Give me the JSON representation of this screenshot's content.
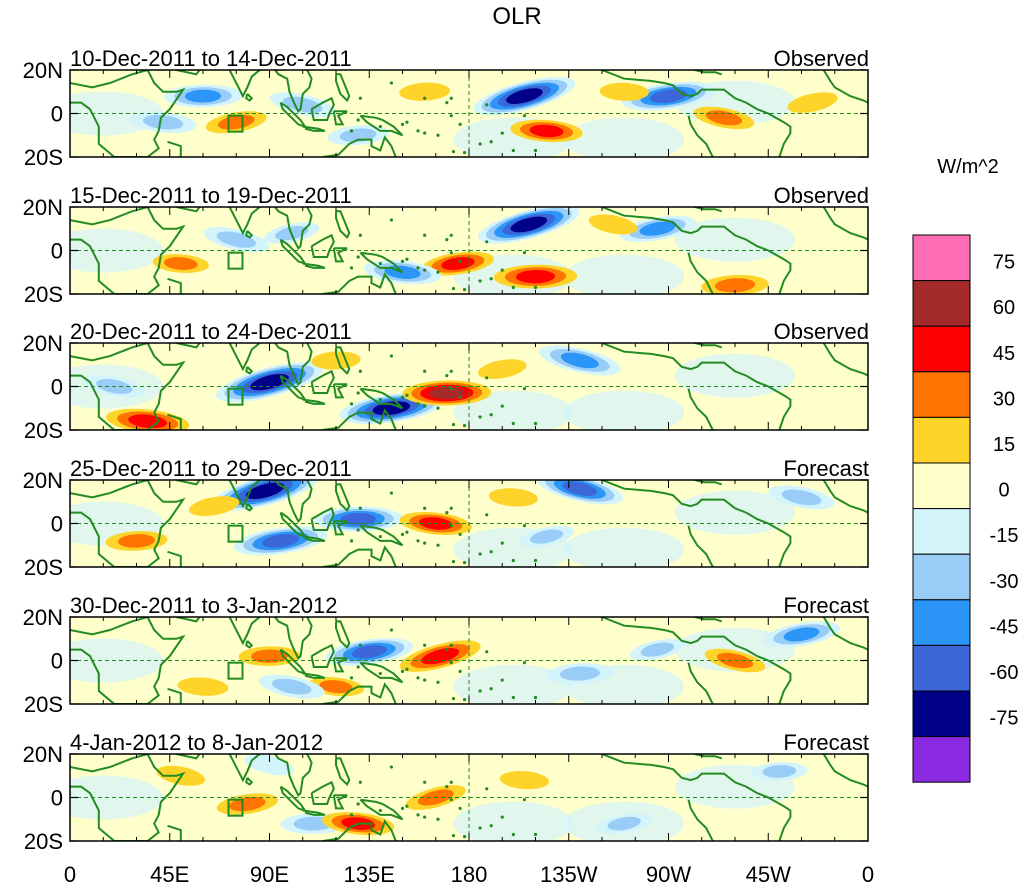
{
  "chart_data": {
    "type": "heatmap",
    "title": "OLR",
    "units_label": "W/m^2",
    "lat_tick_labels": [
      "20N",
      "0",
      "20S"
    ],
    "lon_tick_labels": [
      "0",
      "45E",
      "90E",
      "135E",
      "180",
      "135W",
      "90W",
      "45W",
      "0"
    ],
    "lon_ticks_deg": [
      0,
      45,
      90,
      135,
      180,
      225,
      270,
      315,
      360
    ],
    "lon_range": [
      0,
      360
    ],
    "lat_range": [
      -20,
      20
    ],
    "colorbar": {
      "levels": [
        75,
        60,
        45,
        30,
        15,
        0,
        -15,
        -30,
        -45,
        -60,
        -75
      ],
      "colors": [
        "#ff6eb4",
        "#a52a2a",
        "#ff0000",
        "#ff7400",
        "#ffd42a",
        "#ffffcc",
        "#d4f4fb",
        "#99cdf8",
        "#2b95f8",
        "#3c67d8",
        "#00008b",
        "#8a2be2"
      ]
    },
    "panels": [
      {
        "date_range": "10-Dec-2011 to 14-Dec-2011",
        "kind": "Observed",
        "anomalies": [
          {
            "lon": 205,
            "lat": 8,
            "value": -75
          },
          {
            "lon": 270,
            "lat": 8,
            "value": -65
          },
          {
            "lon": 60,
            "lat": 8,
            "value": -50
          },
          {
            "lon": 42,
            "lat": -4,
            "value": -40
          },
          {
            "lon": 105,
            "lat": 4,
            "value": -40
          },
          {
            "lon": 75,
            "lat": -4,
            "value": 35
          },
          {
            "lon": 160,
            "lat": 10,
            "value": 25
          },
          {
            "lon": 215,
            "lat": -8,
            "value": 45
          },
          {
            "lon": 295,
            "lat": -2,
            "value": 35
          },
          {
            "lon": 335,
            "lat": 5,
            "value": 25
          },
          {
            "lon": 130,
            "lat": -10,
            "value": -35
          },
          {
            "lon": 250,
            "lat": 10,
            "value": 20
          }
        ]
      },
      {
        "date_range": "15-Dec-2011 to 19-Dec-2011",
        "kind": "Observed",
        "anomalies": [
          {
            "lon": 207,
            "lat": 12,
            "value": -75
          },
          {
            "lon": 175,
            "lat": -6,
            "value": 45
          },
          {
            "lon": 210,
            "lat": -12,
            "value": 55
          },
          {
            "lon": 150,
            "lat": -10,
            "value": -50
          },
          {
            "lon": 75,
            "lat": 5,
            "value": -40
          },
          {
            "lon": 265,
            "lat": 10,
            "value": -50
          },
          {
            "lon": 300,
            "lat": -16,
            "value": 40
          },
          {
            "lon": 50,
            "lat": -6,
            "value": 30
          },
          {
            "lon": 245,
            "lat": 12,
            "value": 20
          },
          {
            "lon": 100,
            "lat": 8,
            "value": -30
          }
        ]
      },
      {
        "date_range": "20-Dec-2011 to 24-Dec-2011",
        "kind": "Observed",
        "anomalies": [
          {
            "lon": 90,
            "lat": 2,
            "value": -80
          },
          {
            "lon": 145,
            "lat": -10,
            "value": -75
          },
          {
            "lon": 170,
            "lat": -3,
            "value": 60
          },
          {
            "lon": 35,
            "lat": -16,
            "value": 55
          },
          {
            "lon": 230,
            "lat": 12,
            "value": -55
          },
          {
            "lon": 195,
            "lat": 8,
            "value": 20
          },
          {
            "lon": 120,
            "lat": 12,
            "value": 20
          },
          {
            "lon": 300,
            "lat": 10,
            "value": 10
          },
          {
            "lon": 20,
            "lat": 0,
            "value": -35
          }
        ]
      },
      {
        "date_range": "25-Dec-2011 to 29-Dec-2011",
        "kind": "Forecast",
        "anomalies": [
          {
            "lon": 88,
            "lat": 15,
            "value": -80
          },
          {
            "lon": 95,
            "lat": -8,
            "value": -65
          },
          {
            "lon": 130,
            "lat": 2,
            "value": -60
          },
          {
            "lon": 165,
            "lat": 0,
            "value": 45
          },
          {
            "lon": 230,
            "lat": 16,
            "value": -60
          },
          {
            "lon": 65,
            "lat": 8,
            "value": 25
          },
          {
            "lon": 30,
            "lat": -8,
            "value": 35
          },
          {
            "lon": 200,
            "lat": 12,
            "value": 20
          },
          {
            "lon": 330,
            "lat": 12,
            "value": -40
          },
          {
            "lon": 215,
            "lat": -6,
            "value": -30
          }
        ]
      },
      {
        "date_range": "30-Dec-2011 to 3-Jan-2012",
        "kind": "Forecast",
        "anomalies": [
          {
            "lon": 167,
            "lat": 2,
            "value": 55
          },
          {
            "lon": 135,
            "lat": 4,
            "value": -60
          },
          {
            "lon": 90,
            "lat": 2,
            "value": 35
          },
          {
            "lon": 120,
            "lat": -12,
            "value": 30
          },
          {
            "lon": 300,
            "lat": 0,
            "value": 35
          },
          {
            "lon": 330,
            "lat": 12,
            "value": -50
          },
          {
            "lon": 230,
            "lat": -6,
            "value": -40
          },
          {
            "lon": 60,
            "lat": -12,
            "value": 25
          },
          {
            "lon": 100,
            "lat": -12,
            "value": -40
          },
          {
            "lon": 265,
            "lat": 5,
            "value": -30
          }
        ]
      },
      {
        "date_range": "4-Jan-2012 to 8-Jan-2012",
        "kind": "Forecast",
        "anomalies": [
          {
            "lon": 165,
            "lat": 0,
            "value": 35
          },
          {
            "lon": 80,
            "lat": -3,
            "value": 35
          },
          {
            "lon": 110,
            "lat": -12,
            "value": -40
          },
          {
            "lon": 130,
            "lat": -12,
            "value": 45
          },
          {
            "lon": 90,
            "lat": 15,
            "value": -25
          },
          {
            "lon": 250,
            "lat": -12,
            "value": -30
          },
          {
            "lon": 320,
            "lat": 12,
            "value": -30
          },
          {
            "lon": 205,
            "lat": 8,
            "value": 15
          },
          {
            "lon": 50,
            "lat": 10,
            "value": 15
          }
        ]
      }
    ]
  }
}
